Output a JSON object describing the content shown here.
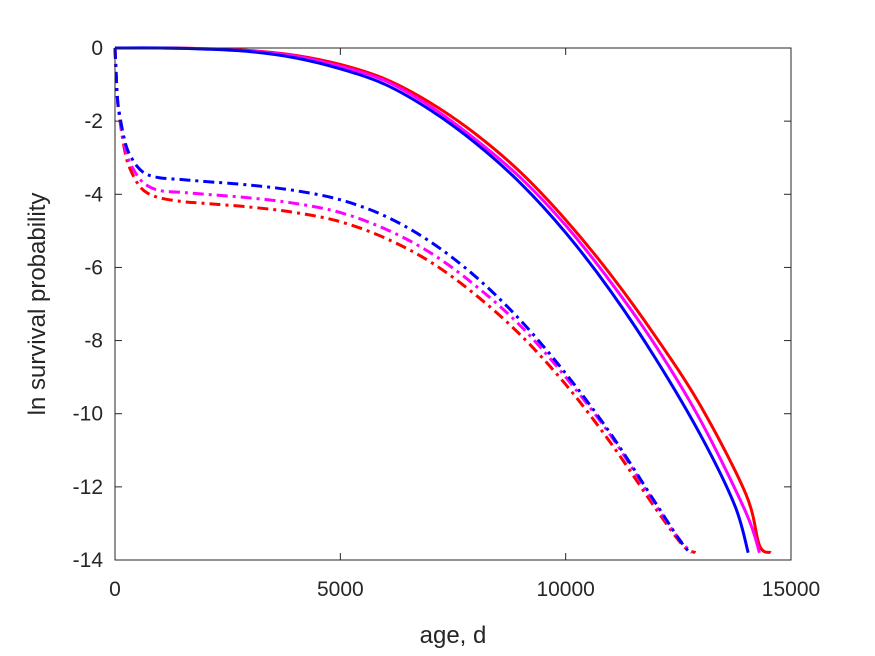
{
  "chart_data": {
    "type": "line",
    "title": "",
    "xlabel": "age, d",
    "ylabel": "ln survival probability",
    "xlim": [
      0,
      15000
    ],
    "ylim": [
      -14,
      0
    ],
    "xticks": [
      0,
      5000,
      10000,
      15000
    ],
    "yticks": [
      0,
      -2,
      -4,
      -6,
      -8,
      -10,
      -12,
      -14
    ],
    "x_tick_labels": [
      "0",
      "5000",
      "10000",
      "15000"
    ],
    "y_tick_labels": [
      "0",
      "-2",
      "-4",
      "-6",
      "-8",
      "-10",
      "-12",
      "-14"
    ],
    "grid": false,
    "legend": "none",
    "series": [
      {
        "color": "#ff0000",
        "style": "solid",
        "x": [
          0,
          1000,
          2000,
          3000,
          4000,
          5000,
          6000,
          7000,
          8000,
          9000,
          10000,
          11000,
          12000,
          13000,
          14000,
          14300,
          14550
        ],
        "y": [
          0,
          0,
          -0.02,
          -0.07,
          -0.2,
          -0.45,
          -0.85,
          -1.5,
          -2.35,
          -3.4,
          -4.7,
          -6.2,
          -7.9,
          -9.8,
          -12.2,
          -13.6,
          -13.8
        ]
      },
      {
        "color": "#ff00ff",
        "style": "solid",
        "x": [
          0,
          1000,
          2000,
          3000,
          4000,
          5000,
          6000,
          7000,
          8000,
          9000,
          10000,
          11000,
          12000,
          13000,
          14000,
          14300
        ],
        "y": [
          0,
          0,
          -0.02,
          -0.08,
          -0.22,
          -0.5,
          -0.9,
          -1.6,
          -2.5,
          -3.55,
          -4.85,
          -6.4,
          -8.15,
          -10.2,
          -12.7,
          -13.8
        ]
      },
      {
        "color": "#0000ff",
        "style": "solid",
        "x": [
          0,
          1000,
          2000,
          3000,
          4000,
          5000,
          6000,
          7000,
          8000,
          9000,
          10000,
          11000,
          12000,
          13000,
          13750,
          14050
        ],
        "y": [
          0,
          0,
          -0.03,
          -0.1,
          -0.27,
          -0.57,
          -1.0,
          -1.7,
          -2.6,
          -3.7,
          -5.05,
          -6.65,
          -8.5,
          -10.6,
          -12.5,
          -13.8
        ]
      },
      {
        "color": "#ff0000",
        "style": "dashdot",
        "x": [
          0,
          50,
          100,
          200,
          300,
          500,
          700,
          1000,
          1500,
          2000,
          3000,
          4000,
          5000,
          6000,
          7000,
          8000,
          9000,
          10000,
          11000,
          12000,
          12600,
          12880
        ],
        "y": [
          0,
          -1.3,
          -1.9,
          -2.7,
          -3.2,
          -3.7,
          -3.95,
          -4.1,
          -4.2,
          -4.25,
          -4.35,
          -4.5,
          -4.75,
          -5.2,
          -5.85,
          -6.75,
          -7.85,
          -9.2,
          -10.8,
          -12.6,
          -13.6,
          -13.8
        ]
      },
      {
        "color": "#ff00ff",
        "style": "dashdot",
        "x": [
          0,
          50,
          100,
          200,
          300,
          500,
          700,
          1000,
          1500,
          2000,
          3000,
          4000,
          5000,
          6000,
          7000,
          8000,
          9000,
          10000,
          11000,
          12000,
          12500,
          12800
        ],
        "y": [
          0,
          -1.3,
          -1.85,
          -2.6,
          -3.05,
          -3.5,
          -3.75,
          -3.9,
          -3.95,
          -4.0,
          -4.1,
          -4.25,
          -4.5,
          -4.95,
          -5.6,
          -6.5,
          -7.6,
          -9.0,
          -10.6,
          -12.5,
          -13.4,
          -13.8
        ]
      },
      {
        "color": "#0000ff",
        "style": "dashdot",
        "x": [
          0,
          50,
          100,
          200,
          300,
          500,
          700,
          1000,
          1500,
          2000,
          3000,
          4000,
          5000,
          6000,
          7000,
          8000,
          9000,
          10000,
          11000,
          12000,
          12500,
          12750
        ],
        "y": [
          0,
          -1.3,
          -1.8,
          -2.45,
          -2.85,
          -3.25,
          -3.45,
          -3.55,
          -3.6,
          -3.65,
          -3.75,
          -3.9,
          -4.15,
          -4.6,
          -5.3,
          -6.25,
          -7.45,
          -8.9,
          -10.55,
          -12.45,
          -13.4,
          -13.8
        ]
      }
    ]
  }
}
